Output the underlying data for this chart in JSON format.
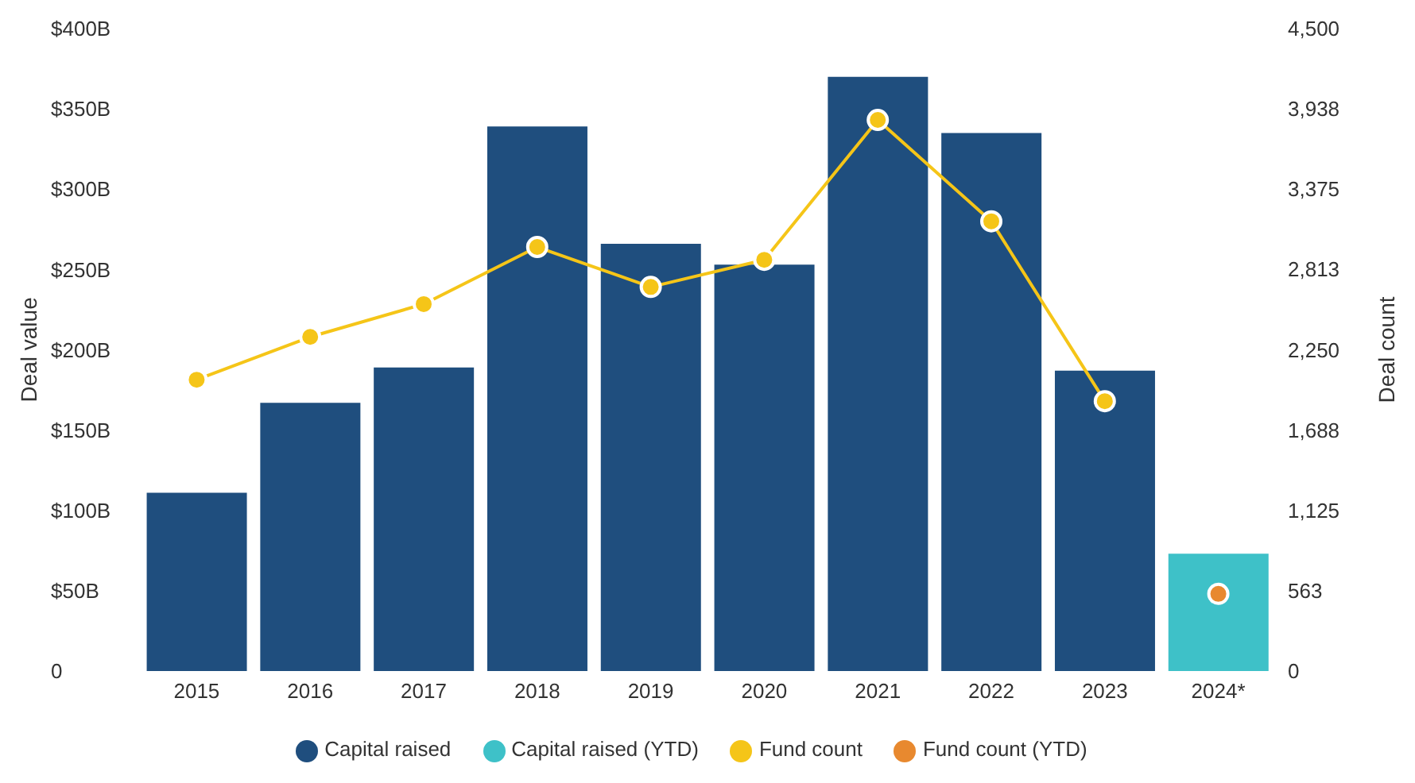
{
  "chart_data": {
    "type": "bar",
    "stacked": true,
    "categories": [
      "2015",
      "2016",
      "2017",
      "2018",
      "2019",
      "2020",
      "2021",
      "2022",
      "2023",
      "2024*"
    ],
    "series": [
      {
        "name": "Capital raised",
        "color": "#1f4e7e",
        "values": [
          111,
          167,
          189,
          339,
          266,
          253,
          370,
          335,
          187,
          null
        ]
      },
      {
        "name": "Capital raised (YTD)",
        "color": "#3ec1c8",
        "values": [
          null,
          null,
          null,
          null,
          null,
          null,
          null,
          null,
          null,
          73
        ]
      },
      {
        "name": "Fund count",
        "type": "line",
        "axis": "y2",
        "color": "#f5c518",
        "values": [
          2040,
          2340,
          2570,
          2970,
          2690,
          2880,
          3860,
          3150,
          1890,
          null
        ]
      },
      {
        "name": "Fund count (YTD)",
        "type": "line",
        "axis": "y2",
        "color": "#e8892f",
        "values": [
          null,
          null,
          null,
          null,
          null,
          null,
          null,
          null,
          null,
          540
        ]
      }
    ],
    "ylabel": "Deal value",
    "y2label": "Deal count",
    "ylim": [
      0,
      400
    ],
    "yticks": [
      0,
      {
        "value": 50,
        "label": "$50B"
      },
      {
        "value": 100,
        "label": "$100B"
      },
      {
        "value": 150,
        "label": "$150B"
      },
      {
        "value": 200,
        "label": "$200B"
      },
      {
        "value": 250,
        "label": "$250B"
      },
      {
        "value": 300,
        "label": "$300B"
      },
      {
        "value": 350,
        "label": "$350B"
      },
      {
        "value": 400,
        "label": "$400B"
      }
    ],
    "y2lim": [
      0,
      4500
    ],
    "y2ticks": [
      0,
      563,
      {
        "value": 1125,
        "label": "1,125"
      },
      {
        "value": 1688,
        "label": "1,688"
      },
      {
        "value": 2250,
        "label": "2,250"
      },
      {
        "value": 2813,
        "label": "2,813"
      },
      {
        "value": 3375,
        "label": "3,375"
      },
      {
        "value": 3938,
        "label": "3,938"
      },
      {
        "value": 4500,
        "label": "4,500"
      }
    ],
    "grid": false,
    "legend": "bottom",
    "marker": "circle",
    "line_style": "solid"
  }
}
